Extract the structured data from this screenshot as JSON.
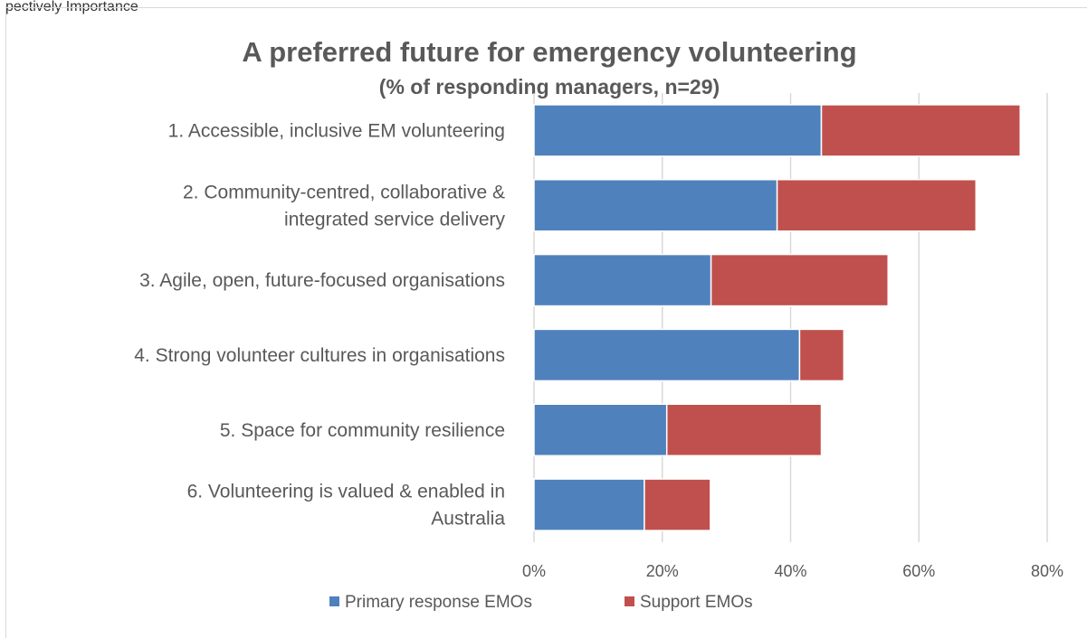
{
  "page": {
    "top_text": "pectively Importance"
  },
  "chart_data": {
    "type": "bar",
    "orientation": "horizontal",
    "stacked": true,
    "title": "A preferred future for emergency volunteering",
    "subtitle": "(% of responding managers, n=29)",
    "categories": [
      [
        "1. Accessible, inclusive EM volunteering"
      ],
      [
        "2. Community-centred, collaborative &",
        "integrated service delivery"
      ],
      [
        "3. Agile, open, future-focused organisations"
      ],
      [
        "4. Strong volunteer cultures in organisations"
      ],
      [
        "5. Space for community resilience"
      ],
      [
        "6. Volunteering is valued & enabled in",
        "Australia"
      ]
    ],
    "series": [
      {
        "name": "Primary response EMOs",
        "color": "#4f81bd",
        "values": [
          44.8,
          37.9,
          27.6,
          41.4,
          20.7,
          17.2
        ]
      },
      {
        "name": "Support EMOs",
        "color": "#c0504d",
        "values": [
          31.0,
          31.0,
          27.6,
          6.9,
          24.1,
          10.3
        ]
      }
    ],
    "xlim": [
      0,
      80
    ],
    "xticks": [
      "0%",
      "20%",
      "40%",
      "60%",
      "80%"
    ],
    "grid": true,
    "legend_position": "bottom"
  }
}
